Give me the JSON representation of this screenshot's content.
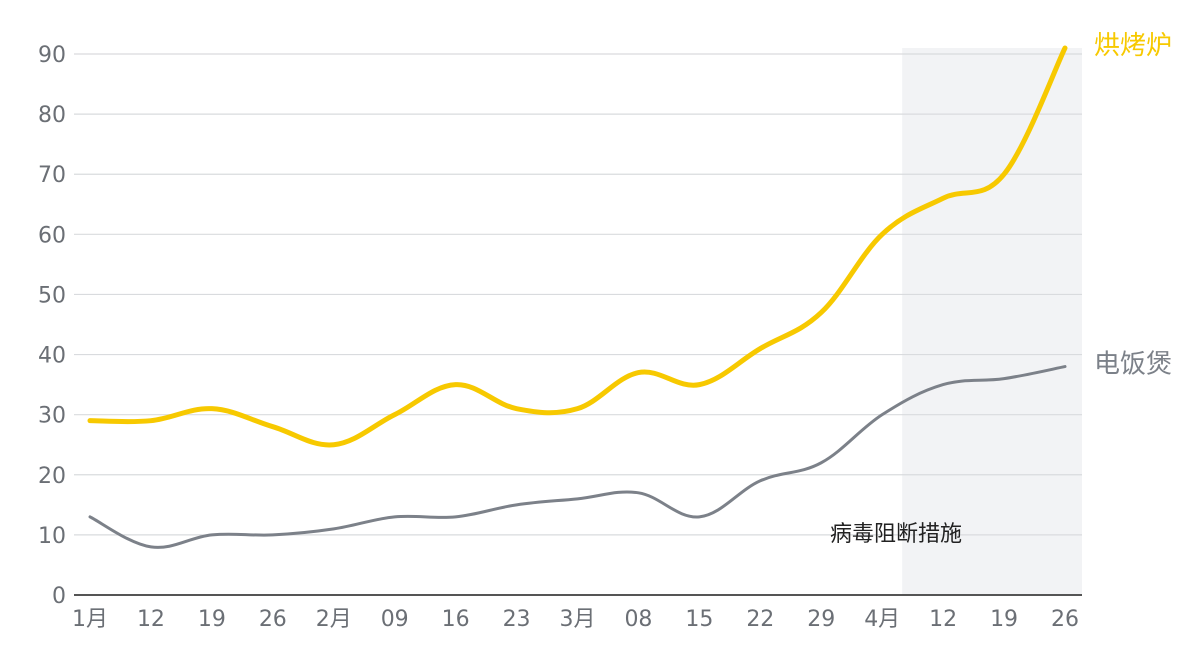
{
  "colors": {
    "oven": "#f7c900",
    "rice_cooker": "#7c8189",
    "grid": "#d9dbde",
    "axis": "#555555",
    "shade": "#f2f3f5",
    "tick_text": "#6b6f75"
  },
  "chart_data": {
    "type": "line",
    "grid": true,
    "legend": "none (series labels at line ends)",
    "x_tick_labels": [
      "1月",
      "12",
      "19",
      "26",
      "2月",
      "09",
      "16",
      "23",
      "3月",
      "08",
      "15",
      "22",
      "29",
      "4月",
      "12",
      "19",
      "26"
    ],
    "y_ticks": [
      0,
      10,
      20,
      30,
      40,
      50,
      60,
      70,
      80,
      90
    ],
    "ylim": [
      0,
      90
    ],
    "series": [
      {
        "name": "烘烤炉",
        "values": [
          29,
          29,
          31,
          28,
          25,
          30,
          35,
          31,
          31,
          37,
          35,
          41,
          47,
          60,
          66,
          70,
          91
        ]
      },
      {
        "name": "电饭煲",
        "values": [
          13,
          8,
          10,
          10,
          11,
          13,
          13,
          15,
          16,
          17,
          13,
          19,
          22,
          30,
          35,
          36,
          38
        ]
      }
    ],
    "annotations": [
      {
        "text": "病毒阻断措施",
        "shaded_from_index": 13,
        "shaded_to_index": 16
      }
    ]
  }
}
